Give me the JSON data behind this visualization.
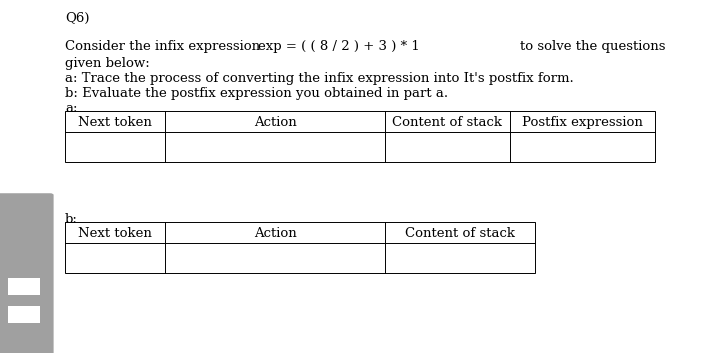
{
  "bg_color": "#ffffff",
  "text_color": "#000000",
  "q_label": "Q6)",
  "line1a": "Consider the infix expression",
  "line1b": "exp = ( ( 8 / 2 ) + 3 ) * 1",
  "line1c": "to solve the questions",
  "line2": "given below:",
  "line3": "a: Trace the process of converting the infix expression into It's postfix form.",
  "line4": "b: Evaluate the postfix expression you obtained in part a.",
  "label_a": "a:",
  "label_b": "b:",
  "table_a_headers": [
    "Next token",
    "Action",
    "Content of stack",
    "Postfix expression"
  ],
  "table_b_headers": [
    "Next token",
    "Action",
    "Content of stack"
  ],
  "font_size": 9.5,
  "gray_color": "#a0a0a0",
  "white_bar_color": "#ffffff"
}
